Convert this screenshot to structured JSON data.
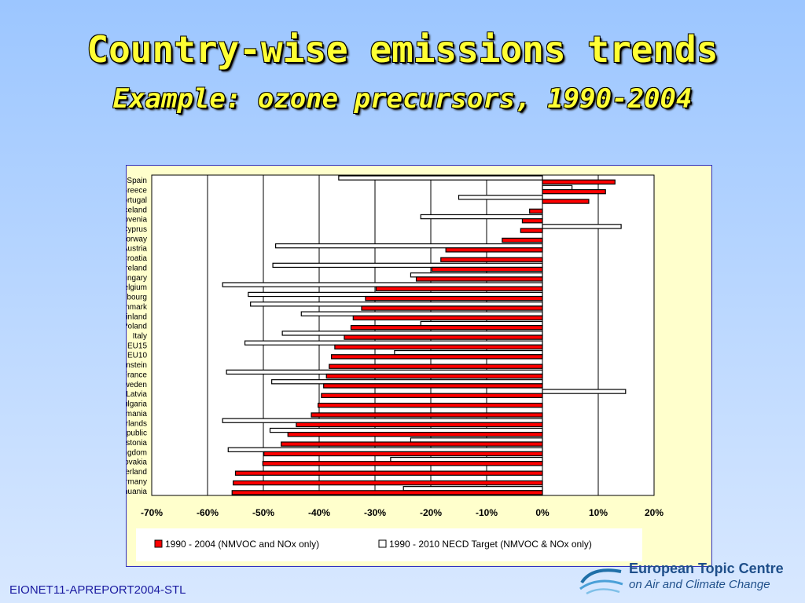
{
  "page": {
    "title": "Country-wise emissions trends",
    "subtitle": "Example: ozone precursors, 1990-2004",
    "footer": "EIONET11-APREPORT2004-STL",
    "logo_line1": "European Topic Centre",
    "logo_line2": "on Air and Climate Change"
  },
  "chart_data": {
    "type": "bar",
    "orientation": "horizontal",
    "categories": [
      "Spain",
      "Greece",
      "Portugal",
      "Iceland",
      "Slovenia",
      "Cyprus",
      "Norway",
      "Austria",
      "Croatia",
      "Ireland",
      "Hungary",
      "Belgium",
      "Luxembourg",
      "Denmark",
      "Finland",
      "Poland",
      "Italy",
      "EU15",
      "EU10",
      "Liechtenstein",
      "France",
      "Sweden",
      "Latvia",
      "Bulgaria",
      "Romania",
      "Netherlands",
      "Czech Republic",
      "Estonia",
      "United Kingdom",
      "Slovakia",
      "Switzerland",
      "Germany",
      "Lithuania"
    ],
    "series": [
      {
        "name": "1990 - 2004 (NMVOC and NOx only)",
        "color": "#ff0000",
        "values": [
          13,
          11.3,
          8.3,
          -2.3,
          -3.6,
          -3.9,
          -7.2,
          -17.3,
          -18.2,
          -19.8,
          -22.6,
          -29.8,
          -31.7,
          -32.4,
          -33.9,
          -34.3,
          -35.5,
          -37.2,
          -37.8,
          -38.2,
          -38.7,
          -39.2,
          -39.6,
          -40.2,
          -41.4,
          -44.1,
          -45.6,
          -46.8,
          -49.9,
          -50.1,
          -55,
          -55.4,
          -55.6
        ]
      },
      {
        "name": "1990 - 2010 NECD Target (NMVOC & NOx only)",
        "color": "#ffffff",
        "values": [
          -36.5,
          5.3,
          -15,
          null,
          -21.8,
          14.1,
          null,
          -47.8,
          null,
          -48.3,
          -23.6,
          -57.3,
          -52.7,
          -52.3,
          -43.2,
          -21.8,
          -46.6,
          -53.3,
          -26.5,
          null,
          -56.6,
          -48.5,
          14.9,
          null,
          null,
          -57.3,
          -48.8,
          -23.6,
          -56.3,
          -27.2,
          null,
          null,
          -24.9
        ]
      }
    ],
    "xlim": [
      -70,
      20
    ],
    "xticks": [
      "-70%",
      "-60%",
      "-50%",
      "-40%",
      "-30%",
      "-20%",
      "-10%",
      "0%",
      "10%",
      "20%"
    ],
    "grid": "vertical",
    "legend": "bottom"
  }
}
